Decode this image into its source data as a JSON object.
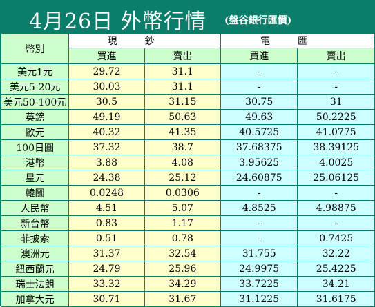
{
  "header": {
    "title": "4月26日 外幣行情",
    "subtitle": "(盤谷銀行匯價)"
  },
  "table": {
    "currency_header": "幣別",
    "group_headers": {
      "cash": "現鈔",
      "wire": "電匯"
    },
    "sub_headers": {
      "buy": "買進",
      "sell": "賣出"
    },
    "rows": [
      {
        "currency": "美元1元",
        "cash_buy": "29.72",
        "cash_sell": "31.1",
        "wire_buy": "-",
        "wire_sell": "-"
      },
      {
        "currency": "美元5-20元",
        "cash_buy": "30.03",
        "cash_sell": "31.1",
        "wire_buy": "-",
        "wire_sell": "-"
      },
      {
        "currency": "美元50-100元",
        "cash_buy": "30.5",
        "cash_sell": "31.15",
        "wire_buy": "30.75",
        "wire_sell": "31"
      },
      {
        "currency": "英鎊",
        "cash_buy": "49.19",
        "cash_sell": "50.63",
        "wire_buy": "49.63",
        "wire_sell": "50.2225"
      },
      {
        "currency": "歐元",
        "cash_buy": "40.32",
        "cash_sell": "41.35",
        "wire_buy": "40.5725",
        "wire_sell": "41.0775"
      },
      {
        "currency": "100日圓",
        "cash_buy": "37.32",
        "cash_sell": "38.7",
        "wire_buy": "37.68375",
        "wire_sell": "38.39125"
      },
      {
        "currency": "港幣",
        "cash_buy": "3.88",
        "cash_sell": "4.08",
        "wire_buy": "3.95625",
        "wire_sell": "4.0025"
      },
      {
        "currency": "星元",
        "cash_buy": "24.38",
        "cash_sell": "25.12",
        "wire_buy": "24.60875",
        "wire_sell": "25.06125"
      },
      {
        "currency": "韓圜",
        "cash_buy": "0.0248",
        "cash_sell": "0.0306",
        "wire_buy": "-",
        "wire_sell": "-"
      },
      {
        "currency": "人民幣",
        "cash_buy": "4.51",
        "cash_sell": "5.07",
        "wire_buy": "4.8525",
        "wire_sell": "4.98875"
      },
      {
        "currency": "新台幣",
        "cash_buy": "0.83",
        "cash_sell": "1.17",
        "wire_buy": "-",
        "wire_sell": "-"
      },
      {
        "currency": "菲披索",
        "cash_buy": "0.51",
        "cash_sell": "0.78",
        "wire_buy": "-",
        "wire_sell": "0.7425"
      },
      {
        "currency": "澳洲元",
        "cash_buy": "31.37",
        "cash_sell": "32.54",
        "wire_buy": "31.755",
        "wire_sell": "32.22"
      },
      {
        "currency": "紐西蘭元",
        "cash_buy": "24.79",
        "cash_sell": "25.96",
        "wire_buy": "24.9975",
        "wire_sell": "25.4225"
      },
      {
        "currency": "瑞士法朗",
        "cash_buy": "33.32",
        "cash_sell": "34.29",
        "wire_buy": "33.7225",
        "wire_sell": "34.21"
      },
      {
        "currency": "加拿大元",
        "cash_buy": "30.71",
        "cash_sell": "31.67",
        "wire_buy": "31.1225",
        "wire_sell": "31.6175"
      }
    ]
  },
  "colors": {
    "frame": "#0b7d6b",
    "currency_bg": "#ccffcc",
    "cash_bg": "#ffffcc",
    "wire_bg": "#ccffff"
  }
}
